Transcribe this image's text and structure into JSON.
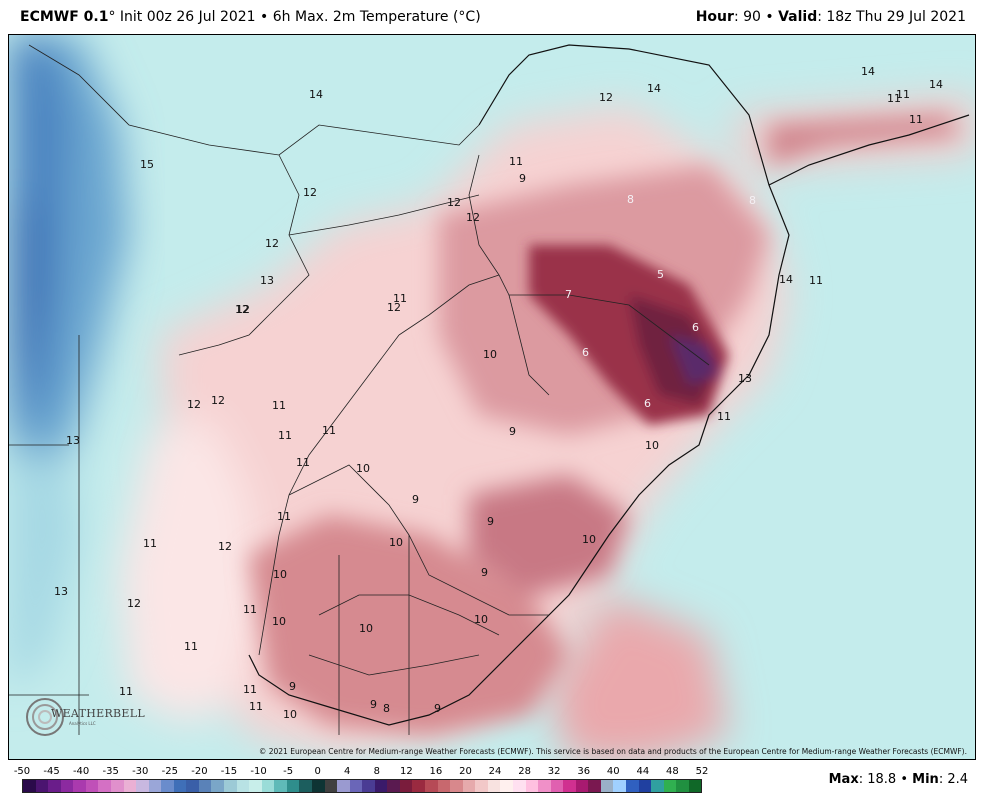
{
  "header": {
    "model": "ECMWF 0.1",
    "degree": "°",
    "init": "Init 00z 26 Jul 2021",
    "bullet": "•",
    "field": "6h Max. 2m Temperature (°C)",
    "hour_label": "Hour",
    "hour_value": ": 90",
    "valid_label": "Valid",
    "valid_value": ": 18z Thu 29 Jul 2021"
  },
  "copyright": "© 2021 European Centre for Medium-range Weather Forecasts (ECMWF). This service is based on data and products of the European Centre for Medium-range Weather Forecasts (ECMWF).",
  "logo": {
    "name": "WEATHERBELL",
    "sub": "Analytics LLC"
  },
  "colorbar": {
    "ticks": [
      "-50",
      "-45",
      "-40",
      "-35",
      "-30",
      "-25",
      "-20",
      "-15",
      "-10",
      "-5",
      "0",
      "4",
      "8",
      "12",
      "16",
      "20",
      "24",
      "28",
      "32",
      "36",
      "40",
      "44",
      "48",
      "52"
    ],
    "colors": [
      "#2a0a4a",
      "#4b1470",
      "#6a1d8a",
      "#8c2aa0",
      "#aa3aae",
      "#c050b8",
      "#d470c4",
      "#e090cc",
      "#eab0d4",
      "#c8b8e0",
      "#9aa6d8",
      "#6a8ccc",
      "#3f6fb8",
      "#3a5fa8",
      "#5a82b8",
      "#7aa6c8",
      "#9ccad6",
      "#b8e2e4",
      "#c8eeea",
      "#9adcd8",
      "#5fbab8",
      "#2f8e8c",
      "#1c5e5e",
      "#0e3434",
      "#404040",
      "#9a9ad0",
      "#6a66b8",
      "#4a3c94",
      "#3a1a6a",
      "#5a1a50",
      "#7a1c3c",
      "#9a2a40",
      "#b64a56",
      "#c8686e",
      "#d8888c",
      "#e6aaac",
      "#f2c8c8",
      "#f8e2e0",
      "#fff0ee",
      "#ffe0f0",
      "#ffc0e0",
      "#f090c8",
      "#e060b0",
      "#d03090",
      "#a81a70",
      "#7a1850",
      "#9ab0c8",
      "#a0d0ff",
      "#3060c0",
      "#2040a0",
      "#30a0a0",
      "#30b050",
      "#209040",
      "#106828"
    ]
  },
  "maxmin": {
    "max_label": "Max",
    "max_value": ": 18.8",
    "bullet": "•",
    "min_label": "Min",
    "min_value": ": 2.4"
  },
  "map_labels": [
    {
      "t": "14",
      "c": "dark"
    },
    {
      "t": "12",
      "c": "dark"
    },
    {
      "t": "14",
      "c": "dark"
    },
    {
      "t": "14",
      "c": "dark"
    },
    {
      "t": "14",
      "c": "dark"
    },
    {
      "t": "11",
      "c": "dark"
    },
    {
      "t": "11",
      "c": "dark"
    },
    {
      "t": "15",
      "c": "dark"
    },
    {
      "t": "11",
      "c": "dark"
    },
    {
      "t": "11",
      "c": "dark"
    },
    {
      "t": "9",
      "c": "dark"
    },
    {
      "t": "8",
      "c": "light"
    },
    {
      "t": "8",
      "c": "light"
    },
    {
      "t": "12",
      "c": "dark"
    },
    {
      "t": "12",
      "c": "dark"
    },
    {
      "t": "12",
      "c": "dark"
    },
    {
      "t": "12",
      "c": "dark"
    },
    {
      "t": "12",
      "c": "dark"
    },
    {
      "t": "13",
      "c": "dark"
    },
    {
      "t": "5",
      "c": "light"
    },
    {
      "t": "14",
      "c": "dark"
    },
    {
      "t": "7",
      "c": "light"
    },
    {
      "t": "11",
      "c": "dark"
    },
    {
      "t": "12",
      "c": "dark"
    },
    {
      "t": "12",
      "c": "dark"
    },
    {
      "t": "6",
      "c": "light"
    },
    {
      "t": "10",
      "c": "dark"
    },
    {
      "t": "6",
      "c": "light"
    },
    {
      "t": "13",
      "c": "dark"
    },
    {
      "t": "6",
      "c": "light"
    },
    {
      "t": "12",
      "c": "dark"
    },
    {
      "t": "12",
      "c": "dark"
    },
    {
      "t": "11",
      "c": "dark"
    },
    {
      "t": "11",
      "c": "dark"
    },
    {
      "t": "11",
      "c": "dark"
    },
    {
      "t": "11",
      "c": "dark"
    },
    {
      "t": "9",
      "c": "dark"
    },
    {
      "t": "13",
      "c": "dark"
    },
    {
      "t": "10",
      "c": "dark"
    },
    {
      "t": "11",
      "c": "dark"
    },
    {
      "t": "10",
      "c": "dark"
    },
    {
      "t": "9",
      "c": "dark"
    },
    {
      "t": "11",
      "c": "dark"
    },
    {
      "t": "9",
      "c": "dark"
    },
    {
      "t": "11",
      "c": "dark"
    },
    {
      "t": "12",
      "c": "dark"
    },
    {
      "t": "10",
      "c": "dark"
    },
    {
      "t": "10",
      "c": "dark"
    },
    {
      "t": "10",
      "c": "dark"
    },
    {
      "t": "9",
      "c": "dark"
    },
    {
      "t": "13",
      "c": "dark"
    },
    {
      "t": "12",
      "c": "dark"
    },
    {
      "t": "11",
      "c": "dark"
    },
    {
      "t": "10",
      "c": "dark"
    },
    {
      "t": "10",
      "c": "dark"
    },
    {
      "t": "10",
      "c": "dark"
    },
    {
      "t": "11",
      "c": "dark"
    },
    {
      "t": "11",
      "c": "dark"
    },
    {
      "t": "11",
      "c": "dark"
    },
    {
      "t": "9",
      "c": "dark"
    },
    {
      "t": "11",
      "c": "dark"
    },
    {
      "t": "9",
      "c": "dark"
    },
    {
      "t": "8",
      "c": "dark"
    },
    {
      "t": "9",
      "c": "dark"
    },
    {
      "t": "11",
      "c": "dark"
    },
    {
      "t": "10",
      "c": "dark"
    }
  ]
}
